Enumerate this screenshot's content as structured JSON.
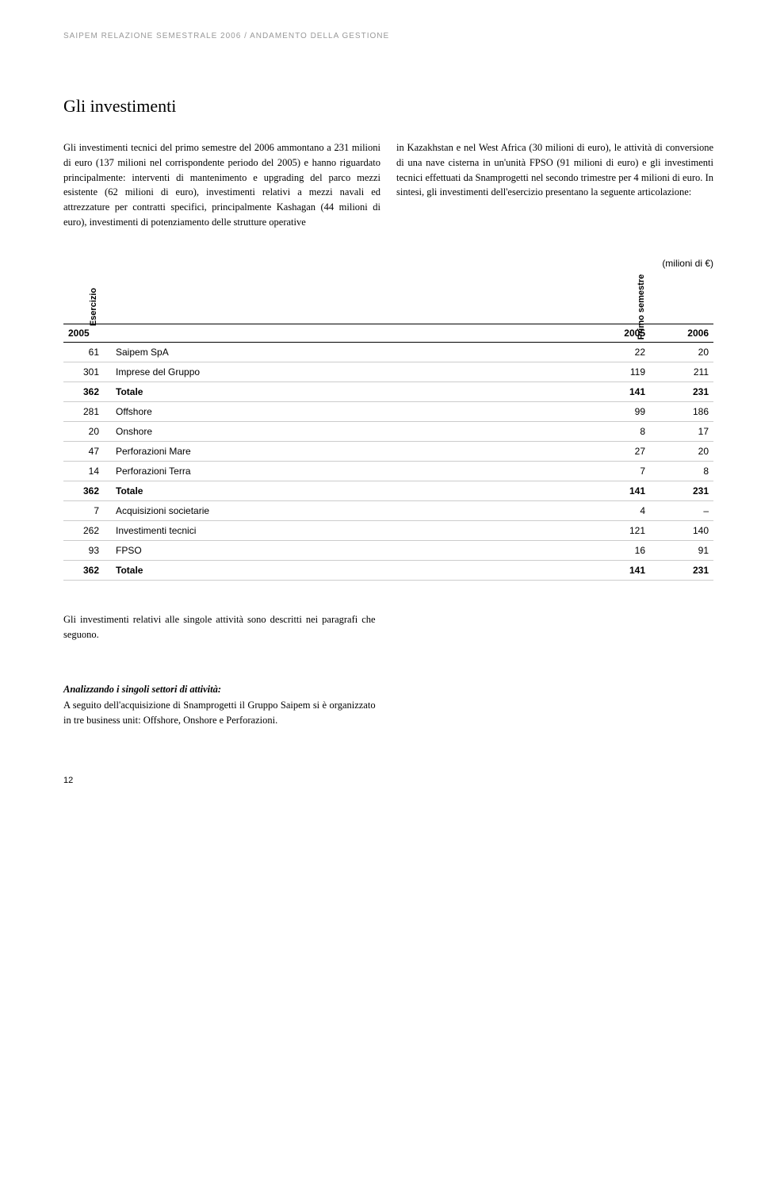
{
  "header": "SAIPEM RELAZIONE SEMESTRALE 2006 / ANDAMENTO DELLA GESTIONE",
  "section_title": "Gli investimenti",
  "column_left": "Gli investimenti tecnici del primo semestre del 2006 ammontano a 231 milioni di euro (137 milioni nel corrispondente periodo del 2005) e hanno riguardato principalmente: interventi di mantenimento e upgrading del parco mezzi esistente (62 milioni di euro), investimenti relativi a mezzi navali ed attrezzature per contratti specifici, principalmente Kashagan (44 milioni di euro), investimenti di potenziamento delle strutture operative",
  "column_right": "in Kazakhstan e nel West Africa (30 milioni di euro), le attività di conversione di una nave cisterna in un'unità FPSO (91 milioni di euro) e gli investimenti tecnici effettuati da Snamprogetti nel secondo trimestre per 4 milioni di euro.\nIn sintesi, gli investimenti dell'esercizio presentano la seguente articolazione:",
  "units_note": "(milioni di €)",
  "table": {
    "headers": {
      "esercizio": "Esercizio",
      "primo_semestre": "Primo semestre",
      "year_left": "2005",
      "year_mid": "2005",
      "year_right": "2006"
    },
    "rows": [
      {
        "esercizio": "61",
        "label": "Saipem SpA",
        "col1": "22",
        "col2": "20",
        "bold": false
      },
      {
        "esercizio": "301",
        "label": "Imprese del Gruppo",
        "col1": "119",
        "col2": "211",
        "bold": false
      },
      {
        "esercizio": "362",
        "label": "Totale",
        "col1": "141",
        "col2": "231",
        "bold": true
      },
      {
        "esercizio": "281",
        "label": "Offshore",
        "col1": "99",
        "col2": "186",
        "bold": false
      },
      {
        "esercizio": "20",
        "label": "Onshore",
        "col1": "8",
        "col2": "17",
        "bold": false
      },
      {
        "esercizio": "47",
        "label": "Perforazioni Mare",
        "col1": "27",
        "col2": "20",
        "bold": false
      },
      {
        "esercizio": "14",
        "label": "Perforazioni Terra",
        "col1": "7",
        "col2": "8",
        "bold": false
      },
      {
        "esercizio": "362",
        "label": "Totale",
        "col1": "141",
        "col2": "231",
        "bold": true
      },
      {
        "esercizio": "7",
        "label": "Acquisizioni societarie",
        "col1": "4",
        "col2": "–",
        "bold": false
      },
      {
        "esercizio": "262",
        "label": "Investimenti tecnici",
        "col1": "121",
        "col2": "140",
        "bold": false
      },
      {
        "esercizio": "93",
        "label": "FPSO",
        "col1": "16",
        "col2": "91",
        "bold": false
      },
      {
        "esercizio": "362",
        "label": "Totale",
        "col1": "141",
        "col2": "231",
        "bold": true
      }
    ]
  },
  "closing_paragraph": "Gli investimenti relativi alle singole attività sono descritti nei paragrafi che seguono.",
  "subtitle": "Analizzando i singoli settori di attività:",
  "final_paragraph": "A seguito dell'acquisizione di Snamprogetti il Gruppo Saipem si è organizzato in tre business unit: Offshore, Onshore e Perforazioni.",
  "page_number": "12"
}
